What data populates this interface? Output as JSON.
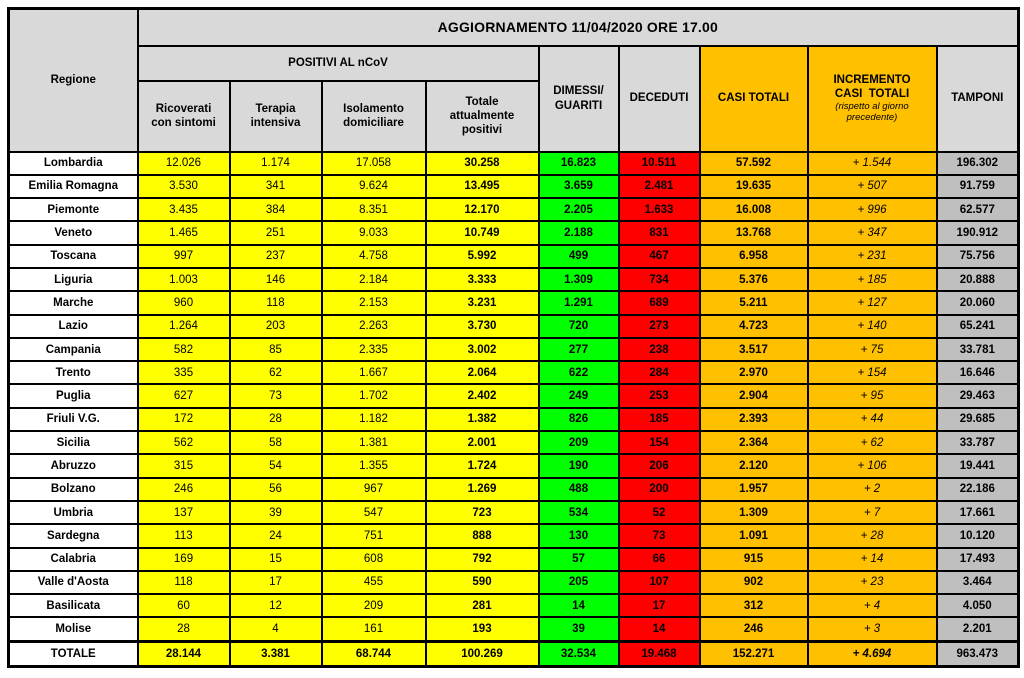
{
  "title": "AGGIORNAMENTO 11/04/2020 ORE 17.00",
  "colors": {
    "yellow": "#FFFF00",
    "green": "#00FF00",
    "red": "#FF0000",
    "orange": "#FFC000",
    "header_gray": "#D9D9D9",
    "tamponi_gray": "#BFBFBF",
    "border": "#000000"
  },
  "headers": {
    "regione": "Regione",
    "positivi_group": "POSITIVI AL nCoV",
    "sub_ricoverati": "Ricoverati\ncon sintomi",
    "sub_terapia": "Terapia\nintensiva",
    "sub_isolamento": "Isolamento\ndomiciliare",
    "sub_totale": "Totale\nattualmente\npositivi",
    "dimessi_guariti": "DIMESSI/\nGUARITI",
    "deceduti": "DECEDUTI",
    "casi_totali": "CASI TOTALI",
    "incremento_line1": "INCREMENTO",
    "incremento_line2": "CASI  TOTALI",
    "incremento_note": "(rispetto al giorno\nprecedente)",
    "tamponi": "TAMPONI"
  },
  "chart_data": {
    "type": "table",
    "title": "AGGIORNAMENTO 11/04/2020 ORE 17.00",
    "columns": [
      "Regione",
      "Ricoverati con sintomi",
      "Terapia intensiva",
      "Isolamento domiciliare",
      "Totale attualmente positivi",
      "DIMESSI/GUARITI",
      "DECEDUTI",
      "CASI TOTALI",
      "INCREMENTO CASI TOTALI (rispetto al giorno precedente)",
      "TAMPONI"
    ],
    "rows": [
      {
        "region": "Lombardia",
        "values": [
          "12.026",
          "1.174",
          "17.058",
          "30.258",
          "16.823",
          "10.511",
          "57.592",
          "+ 1.544",
          "196.302"
        ]
      },
      {
        "region": "Emilia Romagna",
        "values": [
          "3.530",
          "341",
          "9.624",
          "13.495",
          "3.659",
          "2.481",
          "19.635",
          "+ 507",
          "91.759"
        ]
      },
      {
        "region": "Piemonte",
        "values": [
          "3.435",
          "384",
          "8.351",
          "12.170",
          "2.205",
          "1.633",
          "16.008",
          "+ 996",
          "62.577"
        ]
      },
      {
        "region": "Veneto",
        "values": [
          "1.465",
          "251",
          "9.033",
          "10.749",
          "2.188",
          "831",
          "13.768",
          "+ 347",
          "190.912"
        ]
      },
      {
        "region": "Toscana",
        "values": [
          "997",
          "237",
          "4.758",
          "5.992",
          "499",
          "467",
          "6.958",
          "+ 231",
          "75.756"
        ]
      },
      {
        "region": "Liguria",
        "values": [
          "1.003",
          "146",
          "2.184",
          "3.333",
          "1.309",
          "734",
          "5.376",
          "+ 185",
          "20.888"
        ]
      },
      {
        "region": "Marche",
        "values": [
          "960",
          "118",
          "2.153",
          "3.231",
          "1.291",
          "689",
          "5.211",
          "+ 127",
          "20.060"
        ]
      },
      {
        "region": "Lazio",
        "values": [
          "1.264",
          "203",
          "2.263",
          "3.730",
          "720",
          "273",
          "4.723",
          "+ 140",
          "65.241"
        ]
      },
      {
        "region": "Campania",
        "values": [
          "582",
          "85",
          "2.335",
          "3.002",
          "277",
          "238",
          "3.517",
          "+ 75",
          "33.781"
        ]
      },
      {
        "region": "Trento",
        "values": [
          "335",
          "62",
          "1.667",
          "2.064",
          "622",
          "284",
          "2.970",
          "+ 154",
          "16.646"
        ]
      },
      {
        "region": "Puglia",
        "values": [
          "627",
          "73",
          "1.702",
          "2.402",
          "249",
          "253",
          "2.904",
          "+ 95",
          "29.463"
        ]
      },
      {
        "region": "Friuli V.G.",
        "values": [
          "172",
          "28",
          "1.182",
          "1.382",
          "826",
          "185",
          "2.393",
          "+ 44",
          "29.685"
        ]
      },
      {
        "region": "Sicilia",
        "values": [
          "562",
          "58",
          "1.381",
          "2.001",
          "209",
          "154",
          "2.364",
          "+ 62",
          "33.787"
        ]
      },
      {
        "region": "Abruzzo",
        "values": [
          "315",
          "54",
          "1.355",
          "1.724",
          "190",
          "206",
          "2.120",
          "+ 106",
          "19.441"
        ]
      },
      {
        "region": "Bolzano",
        "values": [
          "246",
          "56",
          "967",
          "1.269",
          "488",
          "200",
          "1.957",
          "+ 2",
          "22.186"
        ]
      },
      {
        "region": "Umbria",
        "values": [
          "137",
          "39",
          "547",
          "723",
          "534",
          "52",
          "1.309",
          "+ 7",
          "17.661"
        ]
      },
      {
        "region": "Sardegna",
        "values": [
          "113",
          "24",
          "751",
          "888",
          "130",
          "73",
          "1.091",
          "+ 28",
          "10.120"
        ]
      },
      {
        "region": "Calabria",
        "values": [
          "169",
          "15",
          "608",
          "792",
          "57",
          "66",
          "915",
          "+ 14",
          "17.493"
        ]
      },
      {
        "region": "Valle d'Aosta",
        "values": [
          "118",
          "17",
          "455",
          "590",
          "205",
          "107",
          "902",
          "+ 23",
          "3.464"
        ]
      },
      {
        "region": "Basilicata",
        "values": [
          "60",
          "12",
          "209",
          "281",
          "14",
          "17",
          "312",
          "+ 4",
          "4.050"
        ]
      },
      {
        "region": "Molise",
        "values": [
          "28",
          "4",
          "161",
          "193",
          "39",
          "14",
          "246",
          "+ 3",
          "2.201"
        ]
      }
    ],
    "total_row": {
      "region": "TOTALE",
      "values": [
        "28.144",
        "3.381",
        "68.744",
        "100.269",
        "32.534",
        "19.468",
        "152.271",
        "+ 4.694",
        "963.473"
      ]
    }
  }
}
